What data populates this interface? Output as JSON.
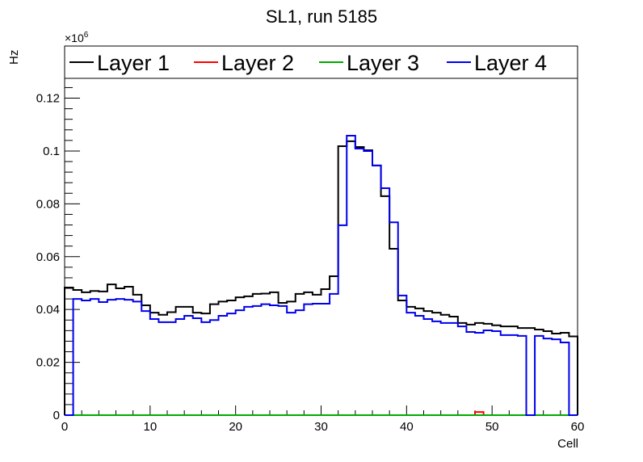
{
  "chart_data": {
    "type": "histogram-step",
    "title": "SL1, run 5185",
    "xlabel": "Cell",
    "ylabel": "Hz",
    "y_multiplier": "×10",
    "y_multiplier_exp": "6",
    "xlim": [
      0,
      60
    ],
    "ylim": [
      0,
      0.1275
    ],
    "x_ticks": [
      0,
      10,
      20,
      30,
      40,
      50,
      60
    ],
    "x_tick_labels": [
      "0",
      "10",
      "20",
      "30",
      "40",
      "50",
      "60"
    ],
    "y_ticks": [
      0,
      0.02,
      0.04,
      0.06,
      0.08,
      0.1,
      0.12
    ],
    "y_tick_labels": [
      "0",
      "0.02",
      "0.04",
      "0.06",
      "0.08",
      "0.1",
      "0.12"
    ],
    "legend_position": "top",
    "series": [
      {
        "name": "Layer 1",
        "color": "#000000",
        "values": [
          0.0483,
          0.0474,
          0.0465,
          0.047,
          0.0468,
          0.0495,
          0.048,
          0.0486,
          0.0456,
          0.0416,
          0.0388,
          0.038,
          0.039,
          0.041,
          0.041,
          0.0388,
          0.0385,
          0.042,
          0.043,
          0.0434,
          0.0446,
          0.045,
          0.0459,
          0.046,
          0.0465,
          0.0425,
          0.043,
          0.0459,
          0.0465,
          0.0456,
          0.0477,
          0.0526,
          0.1018,
          0.1037,
          0.1015,
          0.1003,
          0.0945,
          0.0829,
          0.063,
          0.0434,
          0.041,
          0.0404,
          0.0394,
          0.0388,
          0.038,
          0.0373,
          0.0349,
          0.0343,
          0.0349,
          0.0346,
          0.034,
          0.0336,
          0.0336,
          0.033,
          0.033,
          0.0324,
          0.0318,
          0.0309,
          0.0312,
          0.0298
        ]
      },
      {
        "name": "Layer 2",
        "color": "#ff0000",
        "values": [
          0,
          0,
          0,
          0,
          0,
          0,
          0,
          0,
          0,
          0,
          0,
          0,
          0,
          0,
          0,
          0,
          0,
          0,
          0,
          0,
          0,
          0,
          0,
          0,
          0,
          0,
          0,
          0,
          0,
          0,
          0,
          0,
          0,
          0,
          0,
          0,
          0,
          0,
          0,
          0,
          0,
          0,
          0,
          0,
          0,
          0,
          0,
          0,
          0.0012,
          0,
          0,
          0,
          0,
          0,
          0,
          0,
          0,
          0,
          0,
          0
        ]
      },
      {
        "name": "Layer 3",
        "color": "#00aa00",
        "values": [
          0,
          0,
          0,
          0,
          0,
          0,
          0,
          0,
          0,
          0,
          0,
          0,
          0,
          0,
          0,
          0,
          0,
          0,
          0,
          0,
          0,
          0,
          0,
          0,
          0,
          0,
          0,
          0,
          0,
          0,
          0,
          0,
          0,
          0,
          0,
          0,
          0,
          0,
          0,
          0,
          0,
          0,
          0,
          0,
          0,
          0,
          0,
          0,
          0,
          0,
          0,
          0,
          0,
          0,
          0,
          0,
          0,
          0,
          0,
          0
        ]
      },
      {
        "name": "Layer 4",
        "color": "#0000ee",
        "values": [
          0,
          0.044,
          0.0434,
          0.044,
          0.0428,
          0.0437,
          0.044,
          0.0437,
          0.043,
          0.0394,
          0.0364,
          0.0352,
          0.0352,
          0.0364,
          0.0376,
          0.0367,
          0.0352,
          0.036,
          0.0376,
          0.0385,
          0.0397,
          0.041,
          0.0413,
          0.042,
          0.0416,
          0.0413,
          0.0388,
          0.0397,
          0.042,
          0.0422,
          0.0422,
          0.0459,
          0.0719,
          0.1058,
          0.1009,
          0.1,
          0.0945,
          0.0859,
          0.073,
          0.0453,
          0.0388,
          0.0376,
          0.0364,
          0.0355,
          0.0349,
          0.0349,
          0.0336,
          0.0315,
          0.0312,
          0.0321,
          0.0318,
          0.0303,
          0.0303,
          0.03,
          0,
          0.03,
          0.029,
          0.0287,
          0.0275,
          0
        ]
      }
    ]
  }
}
